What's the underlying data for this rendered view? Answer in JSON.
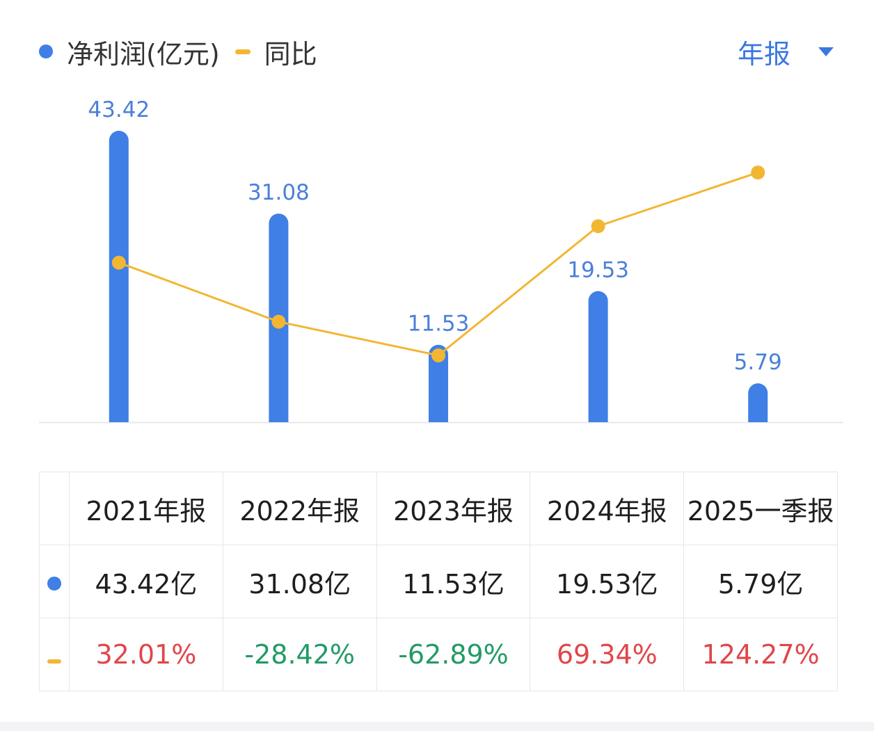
{
  "legend": {
    "net_profit_label": "净利润(亿元)",
    "yoy_label": "同比"
  },
  "period_selector": {
    "selected": "年报",
    "icon": "caret-down-icon"
  },
  "colors": {
    "bar": "#3f7fe6",
    "bar_label": "#4a80d8",
    "line": "#f3b632",
    "positive": "#e0464a",
    "negative": "#239a66",
    "accent": "#3a78e0"
  },
  "chart_data": {
    "type": "bar",
    "categories": [
      "2021年报",
      "2022年报",
      "2023年报",
      "2024年报",
      "2025一季报"
    ],
    "series": [
      {
        "name": "净利润(亿元)",
        "type": "bar",
        "values": [
          43.42,
          31.08,
          11.53,
          19.53,
          5.79
        ],
        "labels": [
          "43.42",
          "31.08",
          "11.53",
          "19.53",
          "5.79"
        ]
      },
      {
        "name": "同比",
        "type": "line",
        "values": [
          32.01,
          -28.42,
          -62.89,
          69.34,
          124.27
        ]
      }
    ],
    "legend_position": "top-left"
  },
  "table": {
    "headers": [
      "2021年报",
      "2022年报",
      "2023年报",
      "2024年报",
      "2025一季报"
    ],
    "net_profit": [
      "43.42亿",
      "31.08亿",
      "11.53亿",
      "19.53亿",
      "5.79亿"
    ],
    "yoy": [
      "32.01%",
      "-28.42%",
      "-62.89%",
      "69.34%",
      "124.27%"
    ]
  }
}
